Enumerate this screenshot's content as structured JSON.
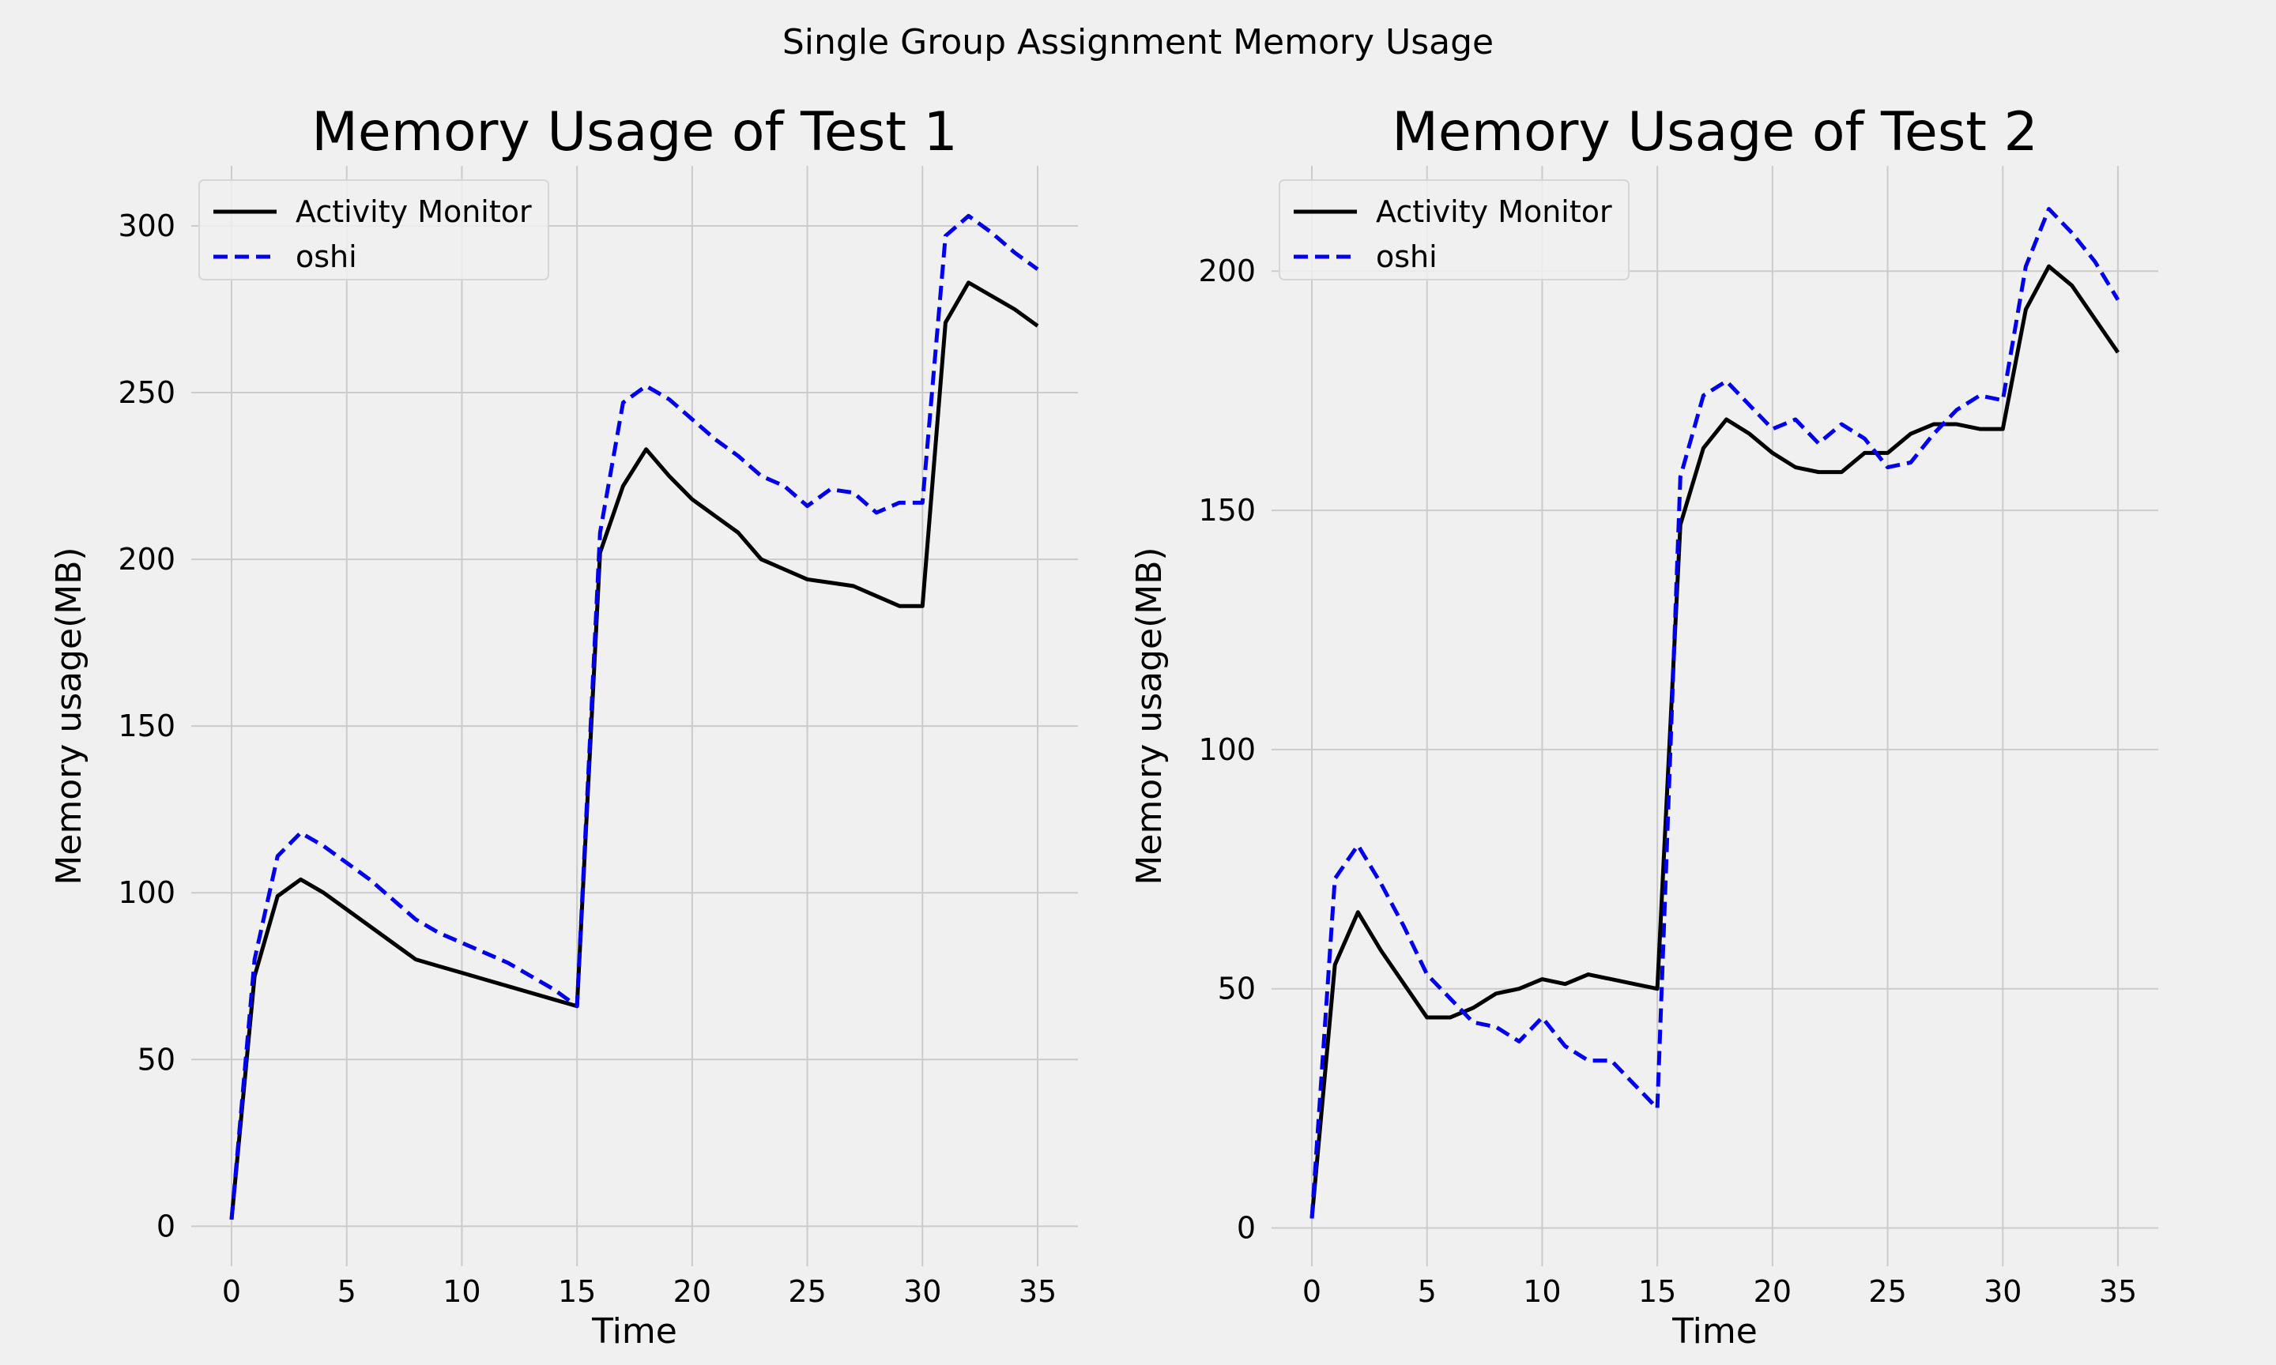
{
  "figure": {
    "title": "Single Group Assignment Memory Usage"
  },
  "colors": {
    "background": "#f0f0f0",
    "grid": "#cbcbcb",
    "activity_monitor": "#000000",
    "oshi": "#0000ee"
  },
  "chart_data": [
    {
      "type": "line",
      "title": "Memory Usage of Test 1",
      "xlabel": "Time",
      "ylabel": "Memory usage(MB)",
      "xlim": [
        -1.75,
        36.75
      ],
      "ylim": [
        -12,
        318
      ],
      "xticks": [
        0,
        5,
        10,
        15,
        20,
        25,
        30,
        35
      ],
      "yticks": [
        0,
        50,
        100,
        150,
        200,
        250,
        300
      ],
      "grid": true,
      "legend": "top-left",
      "x": [
        0,
        1,
        2,
        3,
        4,
        5,
        6,
        7,
        8,
        9,
        10,
        11,
        12,
        13,
        14,
        15,
        16,
        17,
        18,
        19,
        20,
        21,
        22,
        23,
        24,
        25,
        26,
        27,
        28,
        29,
        30,
        31,
        32,
        33,
        34,
        35
      ],
      "series": [
        {
          "name": "Activity Monitor",
          "style": "solid",
          "values": [
            2,
            75,
            99,
            104,
            100,
            95,
            90,
            85,
            80,
            78,
            76,
            74,
            72,
            70,
            68,
            66,
            202,
            222,
            233,
            225,
            218,
            213,
            208,
            200,
            197,
            194,
            193,
            192,
            189,
            186,
            186,
            271,
            283,
            279,
            275,
            270
          ]
        },
        {
          "name": "oshi",
          "style": "dashed",
          "values": [
            2,
            80,
            111,
            118,
            114,
            109,
            104,
            98,
            92,
            88,
            85,
            82,
            79,
            75,
            71,
            66,
            208,
            247,
            252,
            248,
            242,
            236,
            231,
            225,
            222,
            216,
            221,
            220,
            214,
            217,
            217,
            297,
            303,
            298,
            292,
            287
          ]
        }
      ]
    },
    {
      "type": "line",
      "title": "Memory Usage of Test 2",
      "xlabel": "Time",
      "ylabel": "Memory usage(MB)",
      "xlim": [
        -1.75,
        36.75
      ],
      "ylim": [
        -8,
        222
      ],
      "xticks": [
        0,
        5,
        10,
        15,
        20,
        25,
        30,
        35
      ],
      "yticks": [
        0,
        50,
        100,
        150,
        200
      ],
      "grid": true,
      "legend": "top-left",
      "x": [
        0,
        1,
        2,
        3,
        4,
        5,
        6,
        7,
        8,
        9,
        10,
        11,
        12,
        13,
        14,
        15,
        16,
        17,
        18,
        19,
        20,
        21,
        22,
        23,
        24,
        25,
        26,
        27,
        28,
        29,
        30,
        31,
        32,
        33,
        34,
        35
      ],
      "series": [
        {
          "name": "Activity Monitor",
          "style": "solid",
          "values": [
            2,
            55,
            66,
            58,
            51,
            44,
            44,
            46,
            49,
            50,
            52,
            51,
            53,
            52,
            51,
            50,
            147,
            163,
            169,
            166,
            162,
            159,
            158,
            158,
            162,
            162,
            166,
            168,
            168,
            167,
            167,
            192,
            201,
            197,
            190,
            183
          ]
        },
        {
          "name": "oshi",
          "style": "dashed",
          "values": [
            2,
            73,
            80,
            72,
            63,
            53,
            48,
            43,
            42,
            39,
            44,
            38,
            35,
            35,
            30,
            25,
            157,
            174,
            177,
            172,
            167,
            169,
            164,
            168,
            165,
            159,
            160,
            166,
            171,
            174,
            173,
            201,
            213,
            208,
            202,
            194
          ]
        }
      ]
    }
  ]
}
